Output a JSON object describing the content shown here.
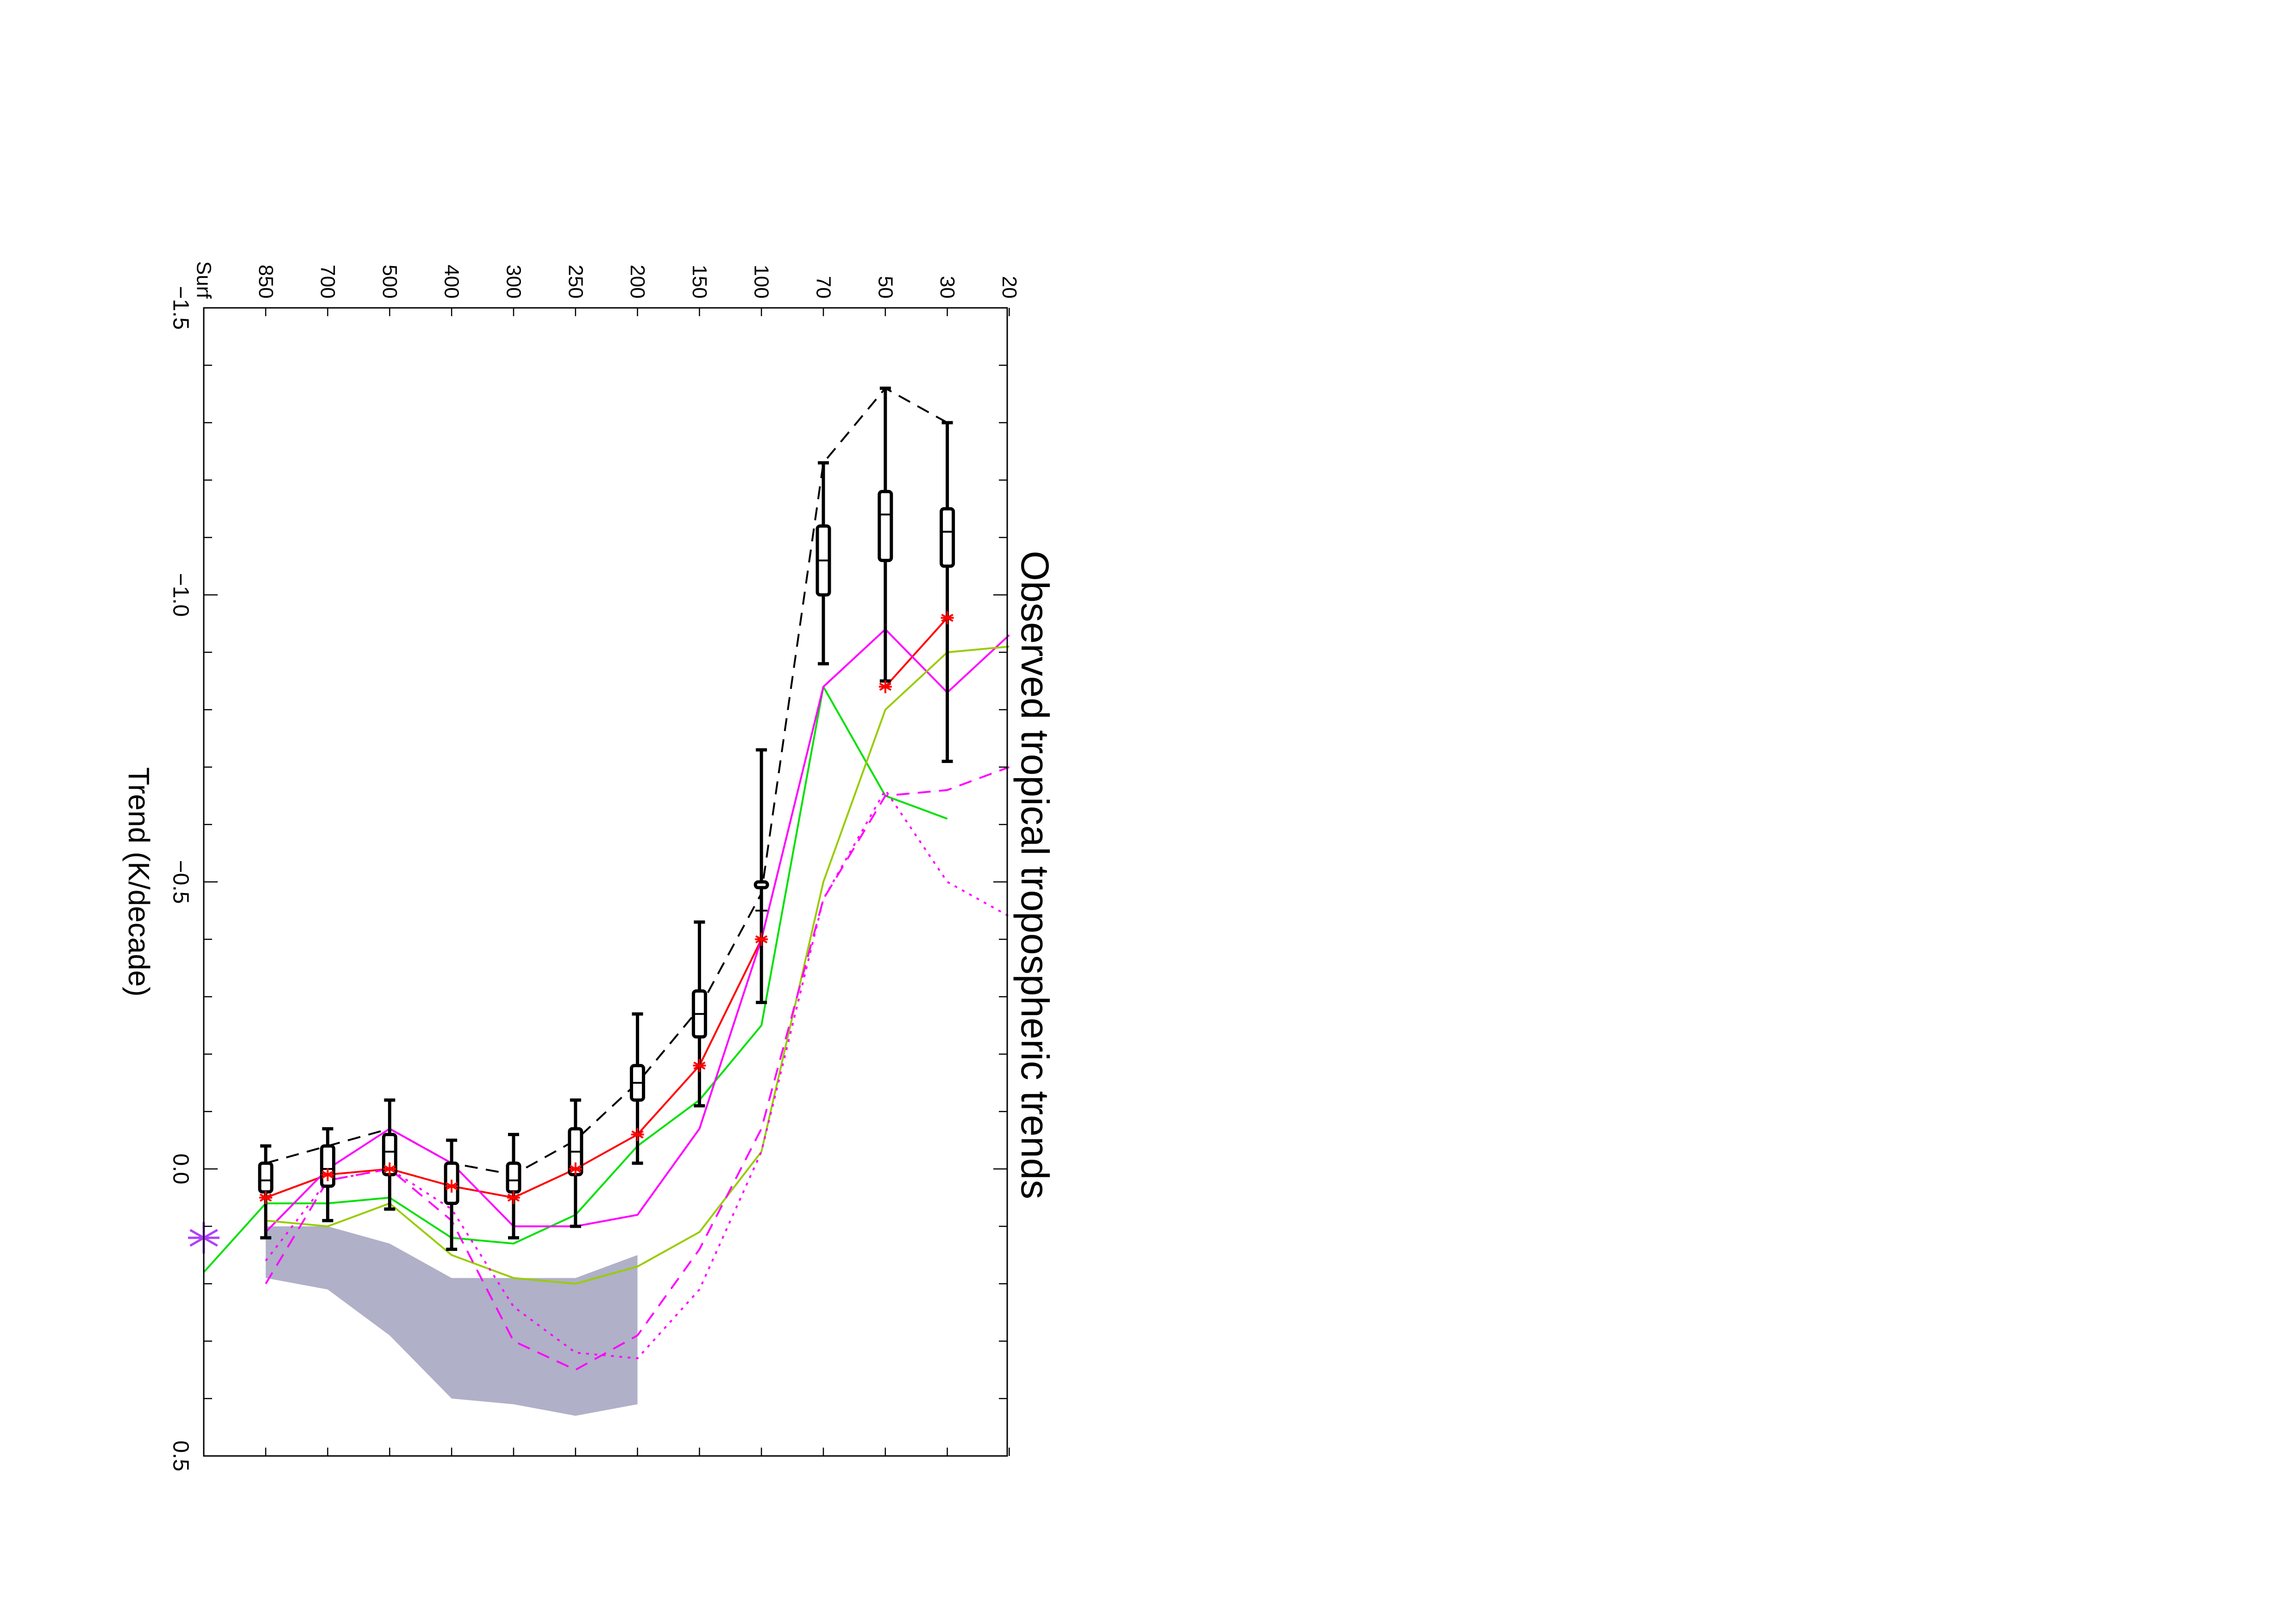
{
  "chart_data": {
    "type": "line",
    "title": "Observed tropical tropospheric trends",
    "xlabel": "Trend (K/decade)",
    "ylabel": "",
    "xlim": [
      -1.5,
      0.5
    ],
    "x_ticks": [
      "−1.5",
      "−1.0",
      "−0.5",
      "0.0",
      "0.5"
    ],
    "levels": [
      "Surf",
      "850",
      "700",
      "500",
      "400",
      "300",
      "250",
      "200",
      "150",
      "100",
      "70",
      "50",
      "30",
      "20"
    ],
    "orientation": "figure rotated 90 degrees counter-clockwise; trend axis along page height, pressure levels along page width",
    "grid": false,
    "legend": "none",
    "surface_marker": {
      "level": "Surf",
      "value": 0.12,
      "color": "#b040ff"
    },
    "shaded_range": {
      "color": "#b0b0c8",
      "levels": [
        "850",
        "700",
        "500",
        "400",
        "300",
        "250",
        "200"
      ],
      "low": [
        0.1,
        0.1,
        0.13,
        0.19,
        0.19,
        0.19,
        0.15
      ],
      "high": [
        0.19,
        0.21,
        0.29,
        0.4,
        0.41,
        0.43,
        0.41
      ]
    },
    "boxplots": {
      "color": "#000000",
      "levels": [
        "850",
        "700",
        "500",
        "400",
        "300",
        "250",
        "200",
        "150",
        "100",
        "70",
        "50",
        "30"
      ],
      "whisker_low": [
        0.12,
        0.09,
        0.07,
        0.14,
        0.12,
        0.1,
        -0.01,
        -0.11,
        -0.29,
        -1.23,
        -1.36,
        -1.3
      ],
      "box_low": [
        0.04,
        0.03,
        0.01,
        0.06,
        0.04,
        0.01,
        -0.12,
        -0.23,
        -0.5,
        -1.12,
        -1.18,
        -1.15
      ],
      "median": [
        0.02,
        0.0,
        -0.03,
        0.03,
        0.02,
        -0.03,
        -0.15,
        -0.27,
        -0.45,
        -1.06,
        -1.14,
        -1.11
      ],
      "box_high": [
        -0.01,
        -0.04,
        -0.06,
        -0.01,
        -0.01,
        -0.07,
        -0.18,
        -0.31,
        -0.49,
        -1.0,
        -1.06,
        -1.05
      ],
      "whisker_high": [
        -0.04,
        -0.07,
        -0.12,
        -0.05,
        -0.06,
        -0.12,
        -0.27,
        -0.43,
        -0.73,
        -0.88,
        -0.85,
        -0.71
      ]
    },
    "series": [
      {
        "color": "#000000",
        "style": "dashed",
        "values": [
          null,
          -0.01,
          -0.04,
          -0.07,
          -0.01,
          0.01,
          -0.05,
          -0.15,
          -0.28,
          -0.48,
          -1.23,
          -1.36,
          -1.3,
          null
        ]
      },
      {
        "color": "#ff0000",
        "style": "solid-with-star-markers",
        "values": [
          null,
          0.05,
          0.01,
          0.0,
          0.03,
          0.05,
          0.0,
          -0.06,
          -0.18,
          -0.4,
          null,
          -0.84,
          -0.96,
          null
        ]
      },
      {
        "color": "#00e000",
        "style": "solid",
        "values": [
          0.18,
          0.06,
          0.06,
          0.05,
          0.12,
          0.13,
          0.08,
          -0.04,
          -0.12,
          -0.25,
          -0.84,
          -0.65,
          -0.61,
          null
        ]
      },
      {
        "color": "#ff00ff",
        "style": "solid",
        "values": [
          null,
          0.11,
          0.0,
          -0.07,
          -0.01,
          0.1,
          0.1,
          0.08,
          -0.07,
          -0.4,
          -0.84,
          -0.94,
          -0.83,
          -0.93
        ]
      },
      {
        "color": "#99cc00",
        "style": "solid",
        "values": [
          null,
          0.09,
          0.1,
          0.06,
          0.15,
          0.19,
          0.2,
          0.17,
          0.11,
          -0.03,
          -0.5,
          -0.8,
          -0.9,
          -0.91
        ]
      },
      {
        "color": "#ff00ff",
        "style": "dashed",
        "values": [
          null,
          0.2,
          0.02,
          0.0,
          0.09,
          0.3,
          0.35,
          0.29,
          0.14,
          -0.07,
          -0.47,
          -0.65,
          -0.66,
          -0.7
        ]
      },
      {
        "color": "#ff00ff",
        "style": "dotted",
        "values": [
          null,
          0.16,
          0.02,
          0.0,
          0.07,
          0.24,
          0.32,
          0.33,
          0.21,
          -0.03,
          -0.47,
          -0.66,
          -0.5,
          -0.44
        ]
      }
    ]
  }
}
